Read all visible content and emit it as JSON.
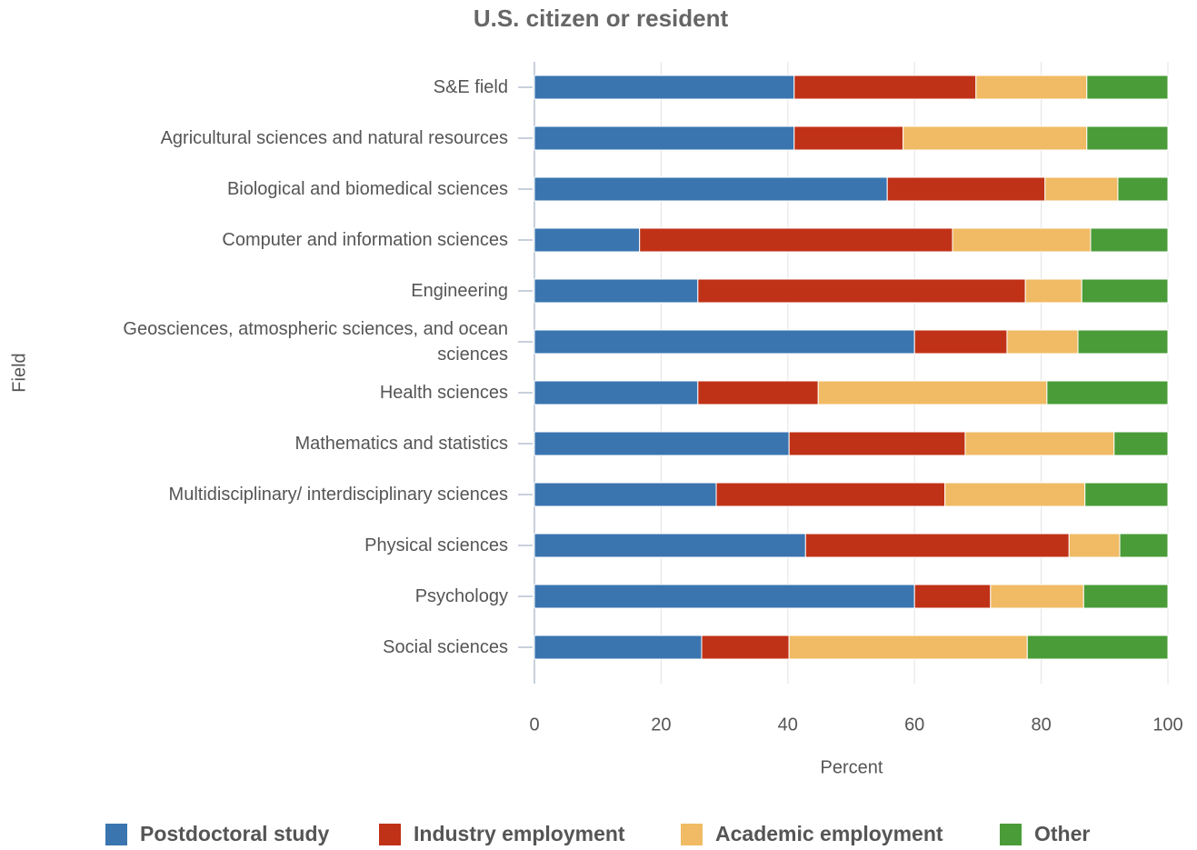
{
  "chart_data": {
    "type": "stacked_bar_horizontal",
    "title": "U.S. citizen or resident",
    "x_label": "Percent",
    "y_label": "Field",
    "categories": [
      "S&E field",
      "Agricultural sciences and natural resources",
      "Biological and biomedical sciences",
      "Computer and information sciences",
      "Engineering",
      "Geosciences, atmospheric sciences, and ocean sciences",
      "Health sciences",
      "Mathematics and statistics",
      "Multidisciplinary/ interdisciplinary sciences",
      "Physical sciences",
      "Psychology",
      "Social sciences"
    ],
    "series": [
      {
        "name": "Postdoctoral study",
        "color": "#3a75b0",
        "values": [
          41.0,
          41.0,
          55.7,
          16.6,
          25.8,
          60.0,
          25.8,
          40.2,
          28.7,
          42.8,
          60.0,
          26.4
        ]
      },
      {
        "name": "Industry employment",
        "color": "#c03217",
        "values": [
          28.7,
          17.2,
          24.9,
          49.4,
          51.7,
          14.6,
          19.0,
          27.8,
          36.1,
          41.6,
          12.0,
          13.8
        ]
      },
      {
        "name": "Academic employment",
        "color": "#f0bb64",
        "values": [
          17.5,
          29.0,
          11.5,
          21.8,
          8.9,
          11.2,
          36.1,
          23.5,
          22.1,
          8.0,
          14.7,
          37.6
        ]
      },
      {
        "name": "Other",
        "color": "#4a9c38",
        "values": [
          12.8,
          12.8,
          7.9,
          12.2,
          13.6,
          14.2,
          19.1,
          8.5,
          13.1,
          7.6,
          13.3,
          22.2
        ]
      }
    ],
    "xlim": [
      0,
      100
    ],
    "xticks": [
      0,
      20,
      40,
      60,
      80,
      100
    ],
    "grid": true,
    "legend": "bottom"
  }
}
